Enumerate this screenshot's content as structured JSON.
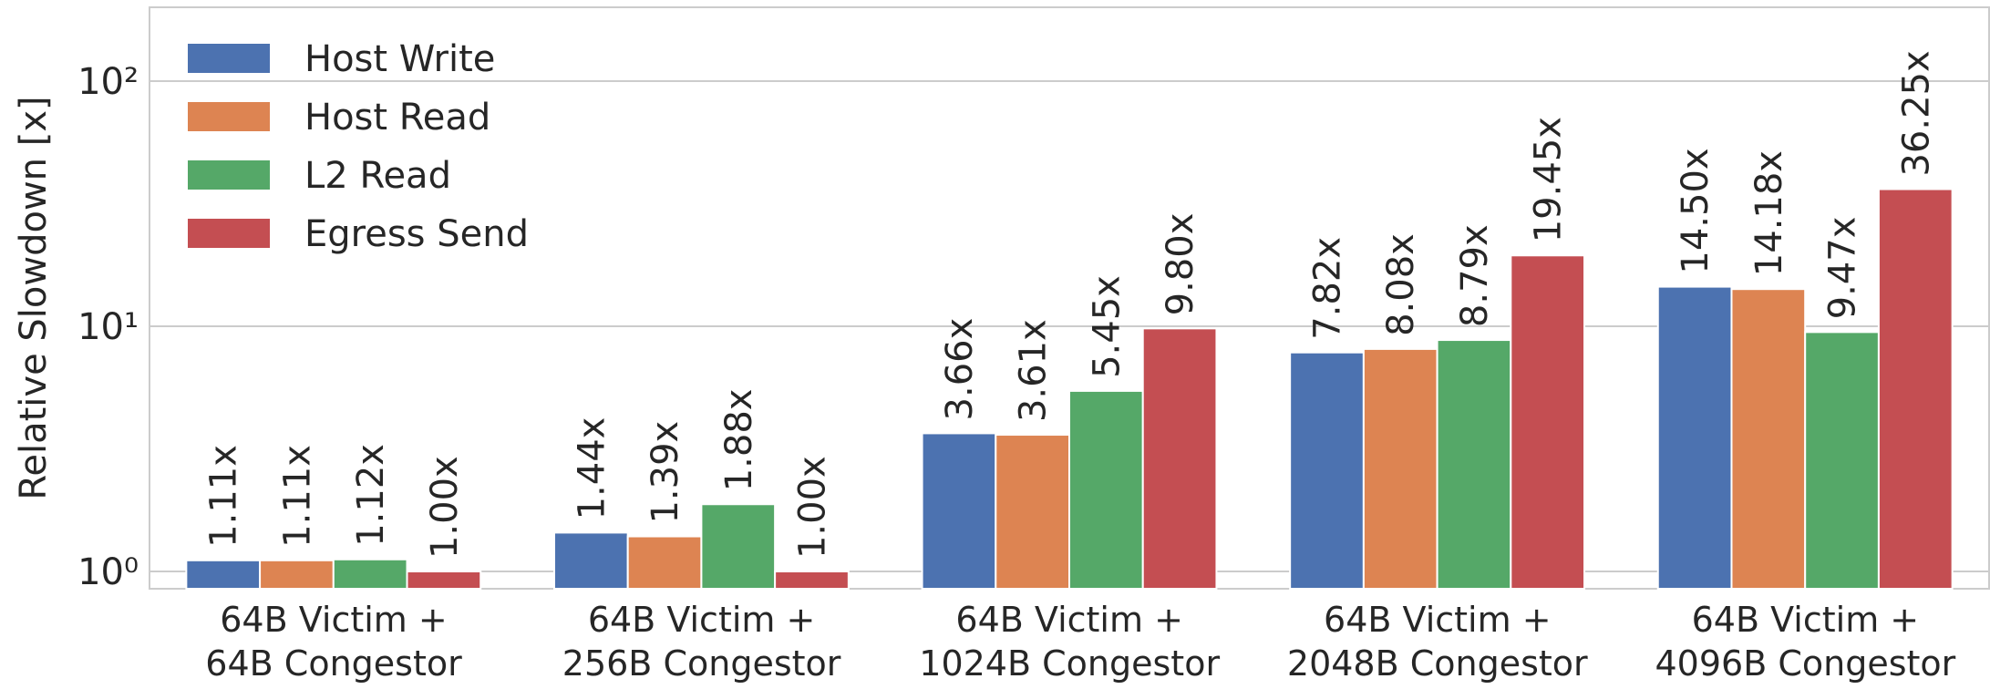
{
  "chart_data": {
    "type": "bar",
    "log_scale": true,
    "grid": true,
    "legend": "upper left",
    "ylabel": "Relative Slowdown [x]",
    "categories": [
      "64B Victim +\n64B Congestor",
      "64B Victim +\n256B Congestor",
      "64B Victim +\n1024B Congestor",
      "64B Victim +\n2048B Congestor",
      "64B Victim +\n4096B Congestor"
    ],
    "series": [
      {
        "name": "Host Write",
        "color": "#4c72b0",
        "values": [
          1.11,
          1.44,
          3.66,
          7.82,
          14.5
        ],
        "value_labels": [
          "1.11x",
          "1.44x",
          "3.66x",
          "7.82x",
          "14.50x"
        ]
      },
      {
        "name": "Host Read",
        "color": "#dd8452",
        "values": [
          1.11,
          1.39,
          3.61,
          8.08,
          14.18
        ],
        "value_labels": [
          "1.11x",
          "1.39x",
          "3.61x",
          "8.08x",
          "14.18x"
        ]
      },
      {
        "name": "L2 Read",
        "color": "#55a868",
        "values": [
          1.12,
          1.88,
          5.45,
          8.79,
          9.47
        ],
        "value_labels": [
          "1.12x",
          "1.88x",
          "5.45x",
          "8.79x",
          "9.47x"
        ]
      },
      {
        "name": "Egress Send",
        "color": "#c44e52",
        "values": [
          1.0,
          1.0,
          9.8,
          19.45,
          36.25
        ],
        "value_labels": [
          "1.00x",
          "1.00x",
          "9.80x",
          "19.45x",
          "36.25x"
        ]
      }
    ],
    "ylim": [
      0.85,
      200
    ],
    "yticks": [
      {
        "value": 1,
        "label": "10⁰"
      },
      {
        "value": 10,
        "label": "10¹"
      },
      {
        "value": 100,
        "label": "10²"
      }
    ]
  }
}
